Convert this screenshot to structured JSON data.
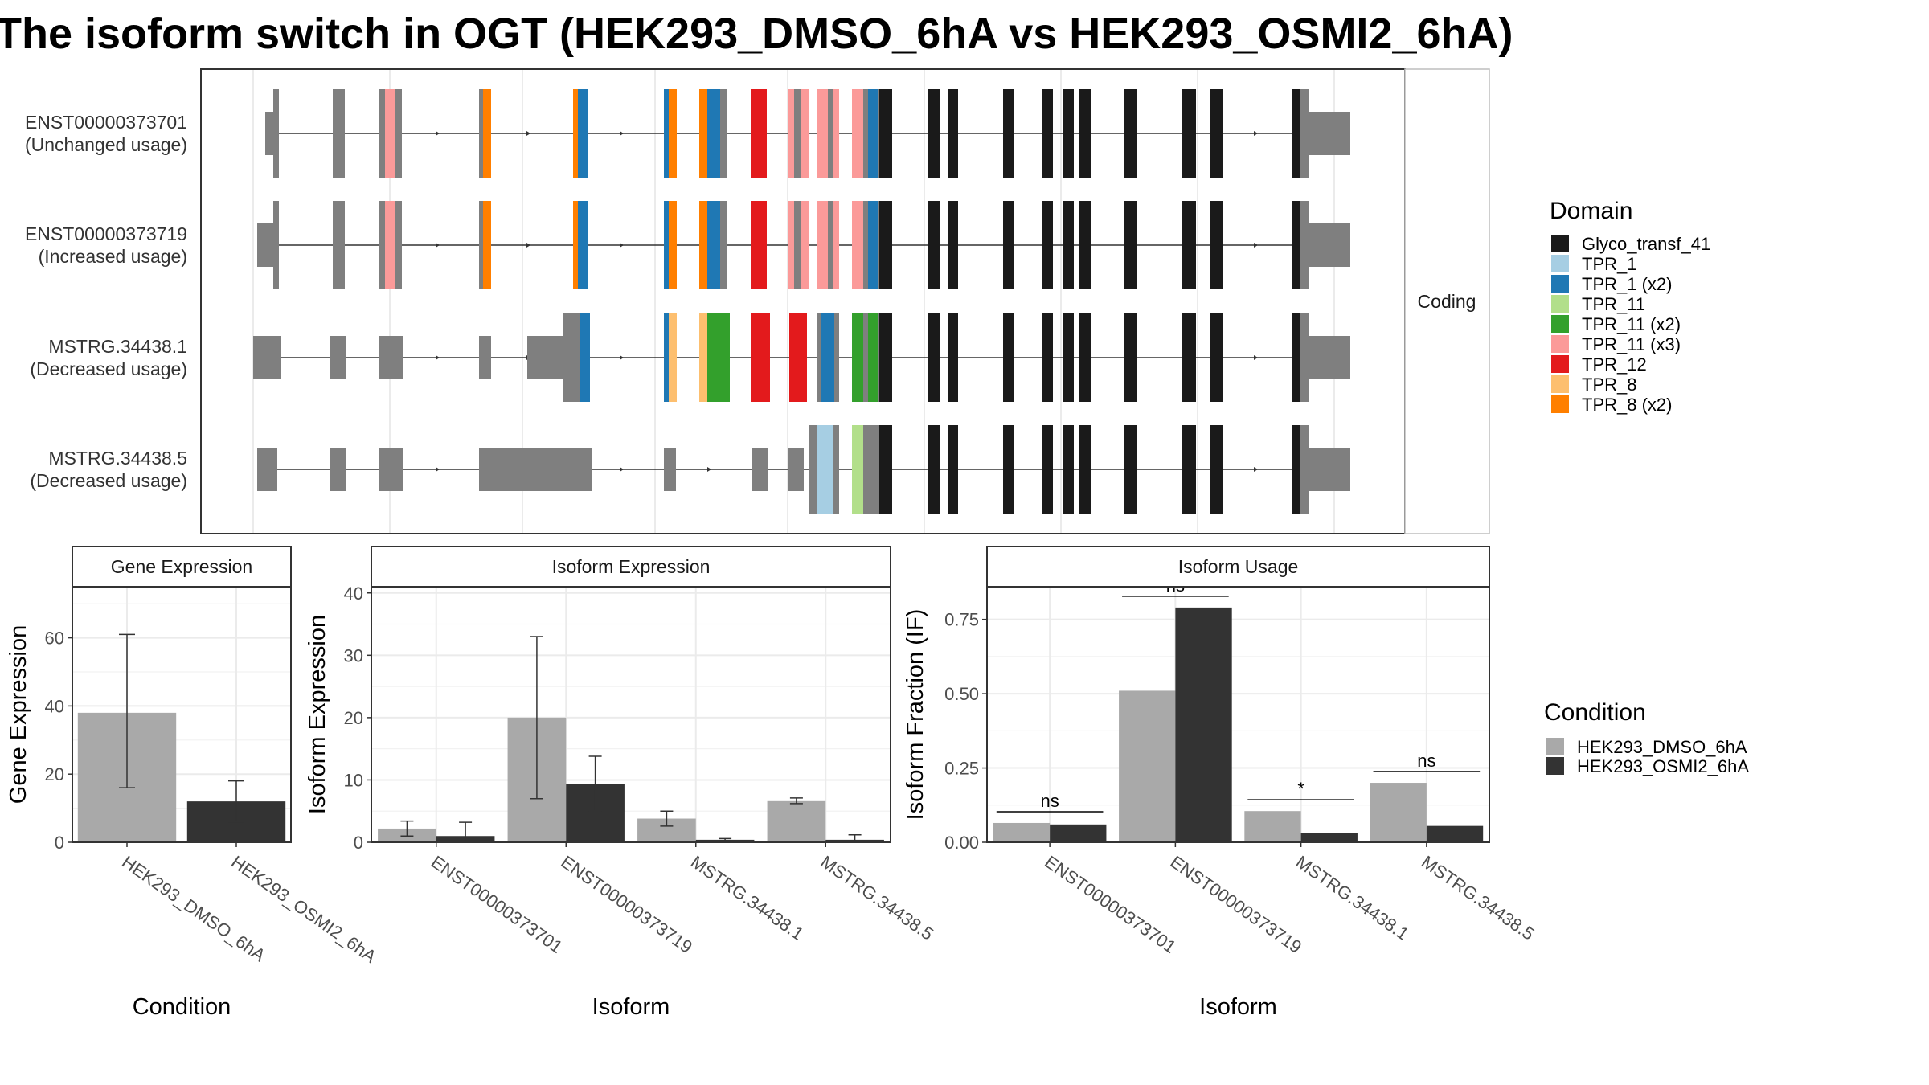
{
  "title": "The isoform switch in OGT (HEK293_DMSO_6hA vs HEK293_OSMI2_6hA)",
  "colors": {
    "dmso": "#a9a9a9",
    "osmi": "#333333",
    "intron": "#7f7f7f",
    "utr": "#7f7f7f",
    "panel_border": "#333333",
    "strip_fill": "#ffffff",
    "grid": "#ebebeb"
  },
  "chart_data": [
    {
      "type": "gene-structure",
      "facet_label": "Coding",
      "transcripts": [
        {
          "id": "ENST00000373701",
          "usage": "(Unchanged usage)"
        },
        {
          "id": "ENST00000373719",
          "usage": "(Increased usage)"
        },
        {
          "id": "MSTRG.34438.1",
          "usage": "(Decreased usage)"
        },
        {
          "id": "MSTRG.34438.5",
          "usage": "(Decreased usage)"
        }
      ],
      "legend_title": "Domain",
      "domains": [
        {
          "name": "Glyco_transf_41",
          "color": "#1a1a1a"
        },
        {
          "name": "TPR_1",
          "color": "#a6cee3"
        },
        {
          "name": "TPR_1 (x2)",
          "color": "#1f78b4"
        },
        {
          "name": "TPR_11",
          "color": "#b2df8a"
        },
        {
          "name": "TPR_11 (x2)",
          "color": "#33a02c"
        },
        {
          "name": "TPR_11 (x3)",
          "color": "#fb9a99"
        },
        {
          "name": "TPR_12",
          "color": "#e31a1c"
        },
        {
          "name": "TPR_8",
          "color": "#fdbf6f"
        },
        {
          "name": "TPR_8 (x2)",
          "color": "#ff7f00"
        }
      ]
    },
    {
      "type": "bar",
      "strip": "Gene Expression",
      "xlabel": "Condition",
      "ylabel": "Gene Expression",
      "ylim": [
        0,
        75
      ],
      "yticks": [
        0,
        20,
        40,
        60
      ],
      "categories": [
        "HEK293_DMSO_6hA",
        "HEK293_OSMI2_6hA"
      ],
      "values": [
        38,
        12
      ],
      "err_low": [
        16,
        6
      ],
      "err_high": [
        61,
        18
      ]
    },
    {
      "type": "bar",
      "strip": "Isoform Expression",
      "xlabel": "Isoform",
      "ylabel": "Isoform Expression",
      "ylim": [
        0,
        41
      ],
      "yticks": [
        0,
        10,
        20,
        30,
        40
      ],
      "categories": [
        "ENST00000373701",
        "ENST00000373719",
        "MSTRG.34438.1",
        "MSTRG.34438.5"
      ],
      "series": [
        {
          "name": "HEK293_DMSO_6hA",
          "values": [
            2.2,
            20,
            3.8,
            6.6
          ],
          "err_low": [
            1.0,
            7,
            2.6,
            6.2
          ],
          "err_high": [
            3.4,
            33,
            5.0,
            7.1
          ]
        },
        {
          "name": "HEK293_OSMI2_6hA",
          "values": [
            1.0,
            9.4,
            0.4,
            0.4
          ],
          "err_low": [
            0.0,
            5,
            0.2,
            0.0
          ],
          "err_high": [
            3.2,
            13.8,
            0.6,
            1.2
          ]
        }
      ]
    },
    {
      "type": "bar",
      "strip": "Isoform Usage",
      "xlabel": "Isoform",
      "ylabel": "Isoform Fraction (IF)",
      "ylim": [
        0,
        0.86
      ],
      "yticks": [
        0,
        0.25,
        0.5,
        0.75
      ],
      "ytick_labels": [
        "0.00",
        "0.25",
        "0.50",
        "0.75"
      ],
      "categories": [
        "ENST00000373701",
        "ENST00000373719",
        "MSTRG.34438.1",
        "MSTRG.34438.5"
      ],
      "series": [
        {
          "name": "HEK293_DMSO_6hA",
          "values": [
            0.065,
            0.51,
            0.105,
            0.2
          ]
        },
        {
          "name": "HEK293_OSMI2_6hA",
          "values": [
            0.06,
            0.79,
            0.03,
            0.055
          ]
        }
      ],
      "significance": [
        "ns",
        "ns",
        "*",
        "ns"
      ]
    }
  ],
  "condition_legend": {
    "title": "Condition",
    "items": [
      "HEK293_DMSO_6hA",
      "HEK293_OSMI2_6hA"
    ]
  }
}
